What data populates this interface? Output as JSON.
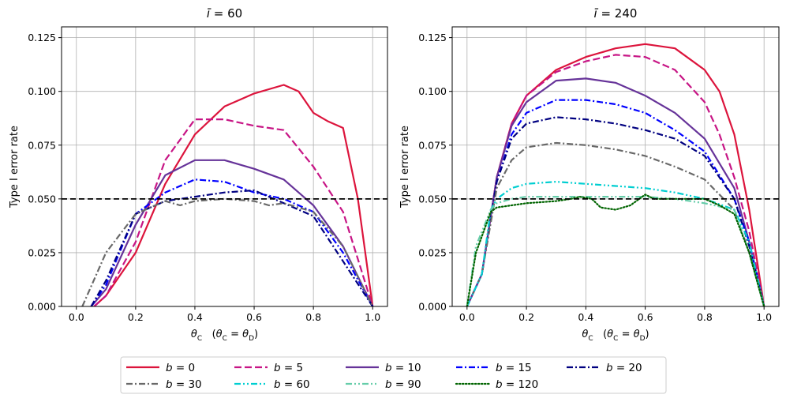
{
  "figure": {
    "legend_entries": [
      {
        "label": "b = 0",
        "color": "#dc143c",
        "dash": "solid"
      },
      {
        "label": "b = 5",
        "color": "#c71585",
        "dash": "dashed"
      },
      {
        "label": "b = 10",
        "color": "#663399",
        "dash": "solid"
      },
      {
        "label": "b = 15",
        "color": "#0000ff",
        "dash": "dashdot"
      },
      {
        "label": "b = 20",
        "color": "#000080",
        "dash": "dashdot"
      },
      {
        "label": "b = 30",
        "color": "#696969",
        "dash": "dashdot"
      },
      {
        "label": "b = 60",
        "color": "#00ced1",
        "dash": "dashdotdot"
      },
      {
        "label": "b = 90",
        "color": "#66cdaa",
        "dash": "dashdotdot"
      },
      {
        "label": "b = 120",
        "color": "#006400",
        "dash": "dotted"
      }
    ]
  },
  "chart_data": [
    {
      "type": "line",
      "title": "ī = 60",
      "xlabel": "θC   (θC = θD)",
      "ylabel": "Type I error rate",
      "xlim": [
        -0.05,
        1.05
      ],
      "ylim": [
        0.0,
        0.13
      ],
      "xticks": [
        "0.0",
        "0.2",
        "0.4",
        "0.6",
        "0.8",
        "1.0"
      ],
      "yticks": [
        "0.000",
        "0.025",
        "0.050",
        "0.075",
        "0.100",
        "0.125"
      ],
      "grid": true,
      "reference_line": {
        "y": 0.05,
        "style": "dashed",
        "color": "#000000"
      },
      "series": [
        {
          "name": "b = 0",
          "x": [
            0.06,
            0.1,
            0.2,
            0.3,
            0.4,
            0.5,
            0.6,
            0.7,
            0.75,
            0.8,
            0.85,
            0.9,
            0.95,
            1.0
          ],
          "values": [
            0.0,
            0.005,
            0.025,
            0.057,
            0.08,
            0.093,
            0.099,
            0.103,
            0.1,
            0.09,
            0.086,
            0.083,
            0.05,
            0.0
          ]
        },
        {
          "name": "b = 5",
          "x": [
            0.06,
            0.1,
            0.2,
            0.3,
            0.4,
            0.5,
            0.6,
            0.7,
            0.8,
            0.9,
            0.95,
            1.0
          ],
          "values": [
            0.0,
            0.005,
            0.03,
            0.068,
            0.087,
            0.087,
            0.084,
            0.082,
            0.065,
            0.044,
            0.022,
            0.0
          ]
        },
        {
          "name": "b = 10",
          "x": [
            0.05,
            0.1,
            0.2,
            0.3,
            0.4,
            0.5,
            0.6,
            0.7,
            0.8,
            0.9,
            1.0
          ],
          "values": [
            0.0,
            0.008,
            0.038,
            0.061,
            0.068,
            0.068,
            0.064,
            0.059,
            0.047,
            0.028,
            0.0
          ]
        },
        {
          "name": "b = 15",
          "x": [
            0.05,
            0.1,
            0.2,
            0.3,
            0.4,
            0.5,
            0.6,
            0.7,
            0.8,
            0.9,
            1.0
          ],
          "values": [
            0.0,
            0.01,
            0.043,
            0.053,
            0.059,
            0.058,
            0.053,
            0.05,
            0.044,
            0.025,
            0.0
          ]
        },
        {
          "name": "b = 20",
          "x": [
            0.05,
            0.1,
            0.2,
            0.3,
            0.4,
            0.5,
            0.6,
            0.7,
            0.8,
            0.9,
            1.0
          ],
          "values": [
            0.0,
            0.012,
            0.043,
            0.049,
            0.051,
            0.053,
            0.054,
            0.048,
            0.042,
            0.021,
            0.0
          ]
        },
        {
          "name": "b = 30",
          "x": [
            0.02,
            0.1,
            0.2,
            0.3,
            0.35,
            0.4,
            0.5,
            0.6,
            0.65,
            0.7,
            0.8,
            0.9,
            1.0
          ],
          "values": [
            0.0,
            0.025,
            0.043,
            0.049,
            0.047,
            0.049,
            0.05,
            0.049,
            0.047,
            0.048,
            0.044,
            0.028,
            0.0
          ]
        }
      ]
    },
    {
      "type": "line",
      "title": "ī = 240",
      "xlabel": "θC   (θC = θD)",
      "ylabel": "Type I error rate",
      "xlim": [
        -0.05,
        1.05
      ],
      "ylim": [
        0.0,
        0.13
      ],
      "xticks": [
        "0.0",
        "0.2",
        "0.4",
        "0.6",
        "0.8",
        "1.0"
      ],
      "yticks": [
        "0.000",
        "0.025",
        "0.050",
        "0.075",
        "0.100",
        "0.125"
      ],
      "grid": true,
      "reference_line": {
        "y": 0.05,
        "style": "dashed",
        "color": "#000000"
      },
      "series": [
        {
          "name": "b = 0",
          "x": [
            0.0,
            0.05,
            0.1,
            0.15,
            0.2,
            0.3,
            0.4,
            0.5,
            0.6,
            0.7,
            0.8,
            0.85,
            0.9,
            0.95,
            1.0
          ],
          "values": [
            0.0,
            0.015,
            0.06,
            0.085,
            0.098,
            0.11,
            0.116,
            0.12,
            0.122,
            0.12,
            0.11,
            0.1,
            0.08,
            0.045,
            0.0
          ]
        },
        {
          "name": "b = 5",
          "x": [
            0.0,
            0.05,
            0.1,
            0.15,
            0.2,
            0.3,
            0.4,
            0.5,
            0.6,
            0.7,
            0.8,
            0.85,
            0.9,
            0.95,
            1.0
          ],
          "values": [
            0.0,
            0.015,
            0.06,
            0.085,
            0.098,
            0.109,
            0.114,
            0.117,
            0.116,
            0.11,
            0.095,
            0.08,
            0.06,
            0.035,
            0.0
          ]
        },
        {
          "name": "b = 10",
          "x": [
            0.0,
            0.05,
            0.1,
            0.15,
            0.2,
            0.3,
            0.4,
            0.5,
            0.6,
            0.7,
            0.8,
            0.9,
            0.95,
            1.0
          ],
          "values": [
            0.0,
            0.015,
            0.06,
            0.084,
            0.095,
            0.105,
            0.106,
            0.104,
            0.098,
            0.09,
            0.078,
            0.055,
            0.03,
            0.0
          ]
        },
        {
          "name": "b = 15",
          "x": [
            0.0,
            0.05,
            0.1,
            0.15,
            0.2,
            0.3,
            0.4,
            0.5,
            0.6,
            0.7,
            0.8,
            0.9,
            0.95,
            1.0
          ],
          "values": [
            0.0,
            0.015,
            0.058,
            0.08,
            0.09,
            0.096,
            0.096,
            0.094,
            0.09,
            0.082,
            0.072,
            0.05,
            0.03,
            0.0
          ]
        },
        {
          "name": "b = 20",
          "x": [
            0.0,
            0.05,
            0.1,
            0.15,
            0.2,
            0.3,
            0.4,
            0.5,
            0.6,
            0.7,
            0.8,
            0.9,
            0.95,
            1.0
          ],
          "values": [
            0.0,
            0.015,
            0.058,
            0.078,
            0.085,
            0.088,
            0.087,
            0.085,
            0.082,
            0.078,
            0.07,
            0.05,
            0.028,
            0.0
          ]
        },
        {
          "name": "b = 30",
          "x": [
            0.0,
            0.05,
            0.1,
            0.15,
            0.2,
            0.3,
            0.4,
            0.5,
            0.6,
            0.7,
            0.8,
            0.9,
            0.95,
            1.0
          ],
          "values": [
            0.0,
            0.015,
            0.055,
            0.068,
            0.074,
            0.076,
            0.075,
            0.073,
            0.07,
            0.065,
            0.059,
            0.045,
            0.025,
            0.0
          ]
        },
        {
          "name": "b = 60",
          "x": [
            0.0,
            0.05,
            0.08,
            0.1,
            0.15,
            0.2,
            0.3,
            0.4,
            0.5,
            0.6,
            0.7,
            0.8,
            0.9,
            0.95,
            1.0
          ],
          "values": [
            0.0,
            0.015,
            0.045,
            0.05,
            0.055,
            0.057,
            0.058,
            0.057,
            0.056,
            0.055,
            0.053,
            0.05,
            0.045,
            0.03,
            0.0
          ]
        },
        {
          "name": "b = 90",
          "x": [
            0.0,
            0.03,
            0.08,
            0.1,
            0.15,
            0.2,
            0.3,
            0.4,
            0.5,
            0.6,
            0.7,
            0.8,
            0.9,
            0.95,
            1.0
          ],
          "values": [
            0.0,
            0.028,
            0.045,
            0.048,
            0.05,
            0.051,
            0.051,
            0.051,
            0.051,
            0.051,
            0.05,
            0.048,
            0.045,
            0.025,
            0.0
          ]
        },
        {
          "name": "b = 120",
          "x": [
            0.0,
            0.03,
            0.08,
            0.1,
            0.15,
            0.2,
            0.3,
            0.35,
            0.38,
            0.42,
            0.45,
            0.5,
            0.55,
            0.6,
            0.63,
            0.7,
            0.8,
            0.85,
            0.9,
            0.95,
            1.0
          ],
          "values": [
            0.0,
            0.025,
            0.044,
            0.046,
            0.047,
            0.048,
            0.049,
            0.05,
            0.051,
            0.05,
            0.046,
            0.045,
            0.047,
            0.052,
            0.05,
            0.05,
            0.05,
            0.047,
            0.043,
            0.025,
            0.0
          ]
        }
      ]
    }
  ]
}
